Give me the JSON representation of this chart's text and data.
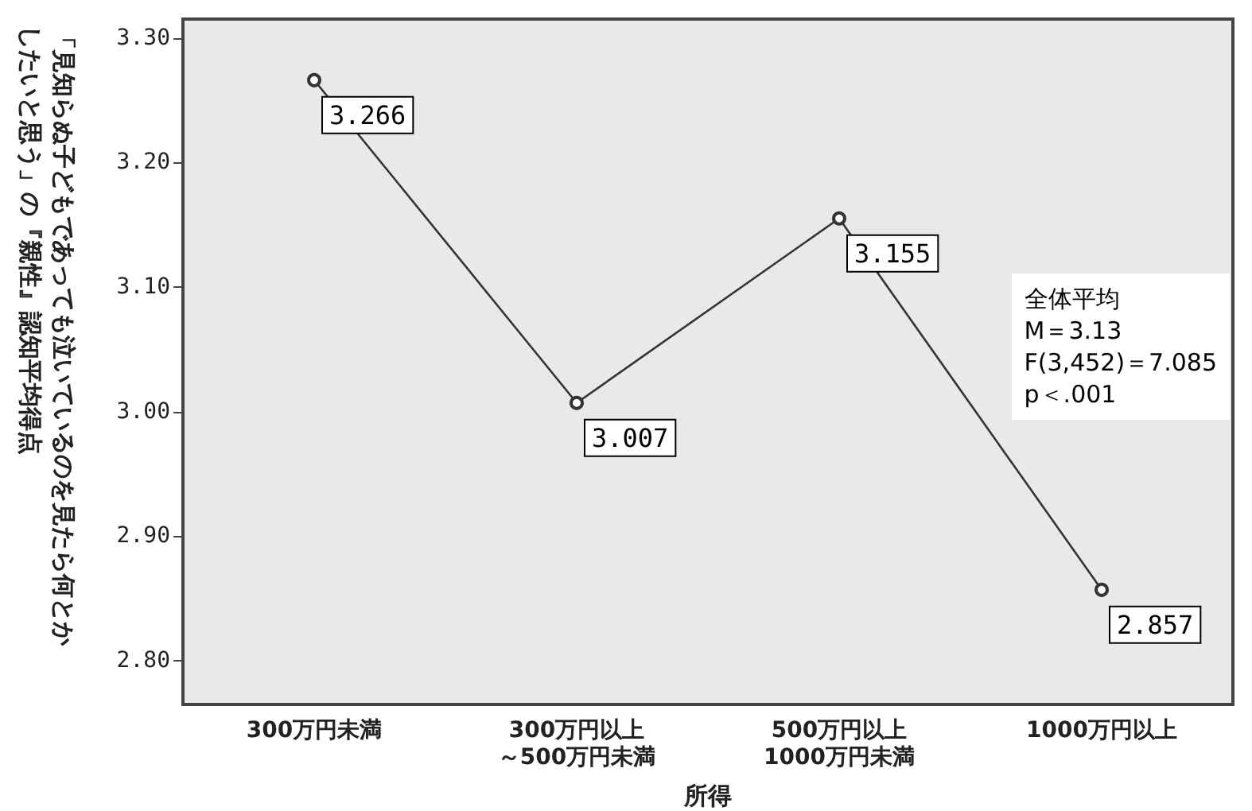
{
  "chart_data": {
    "type": "line",
    "xlabel": "所得",
    "ylabel": "「見知らぬ子どもであっても泣いているのを見たら何とかしたいと思う」の『親性』認知平均得点",
    "categories": [
      "300万円未満",
      "300万円以上～500万円未満",
      "500万円以上1000万円未満",
      "1000万円以上"
    ],
    "series": [
      {
        "color": "#333333",
        "values": [
          3.266,
          3.007,
          3.155,
          2.857
        ]
      }
    ],
    "ylim": [
      2.765,
      3.315
    ],
    "yticks": [
      {
        "value": 2.8,
        "label": "2.80"
      },
      {
        "value": 2.9,
        "label": "2.90"
      },
      {
        "value": 3.0,
        "label": "3.00"
      },
      {
        "value": 3.1,
        "label": "3.10"
      },
      {
        "value": 3.2,
        "label": "3.20"
      },
      {
        "value": 3.3,
        "label": "3.30"
      }
    ],
    "data_labels": true,
    "marker": "circle",
    "line_style": "solid",
    "grid": false,
    "annotations": [
      "全体平均",
      "M＝3.13",
      "F(3,452)＝7.085",
      "p＜.001"
    ]
  }
}
